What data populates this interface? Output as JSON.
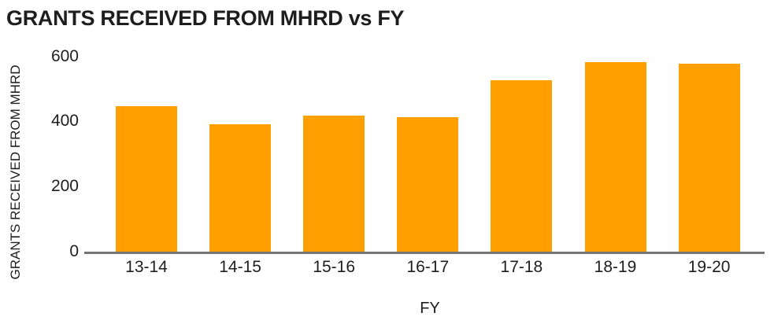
{
  "title": "GRANTS RECEIVED FROM MHRD vs FY",
  "colors": {
    "bar": "#FFA000",
    "axis": "#757575",
    "text": "#1E1E1E",
    "background": "#FFFFFF"
  },
  "chart_data": {
    "type": "bar",
    "title": "GRANTS RECEIVED FROM MHRD vs FY",
    "xlabel": "FY",
    "ylabel": "GRANTS RECEIVED FROM MHRD",
    "categories": [
      "13-14",
      "14-15",
      "15-16",
      "16-17",
      "17-18",
      "18-19",
      "19-20"
    ],
    "values": [
      450,
      395,
      420,
      415,
      530,
      585,
      580
    ],
    "ylim": [
      0,
      600
    ],
    "yticks": [
      0,
      200,
      400,
      600
    ],
    "grid": false,
    "legend": "none",
    "bar_color": "#FFA000"
  }
}
